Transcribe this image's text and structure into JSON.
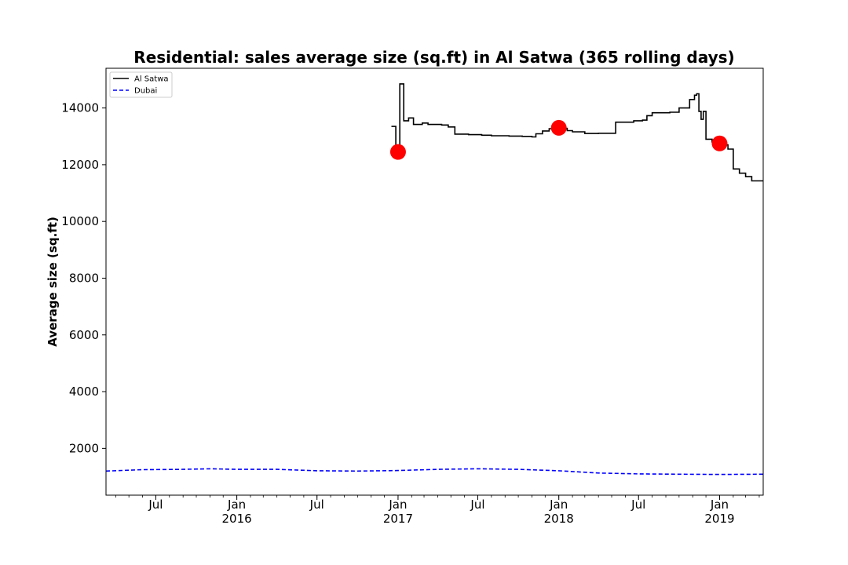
{
  "chart_data": {
    "type": "line",
    "title": "Residential: sales average size (sq.ft) in Al Satwa (365 rolling days)",
    "xlabel": "",
    "ylabel": "Average size (sq.ft)",
    "xlim": [
      "2015-03-10",
      "2019-04-10"
    ],
    "ylim": [
      350,
      15400
    ],
    "yticks": [
      2000,
      4000,
      6000,
      8000,
      10000,
      12000,
      14000
    ],
    "xticks": [
      {
        "date": "2015-07-01",
        "label": "Jul",
        "sub": ""
      },
      {
        "date": "2016-01-01",
        "label": "Jan",
        "sub": "2016"
      },
      {
        "date": "2016-07-01",
        "label": "Jul",
        "sub": ""
      },
      {
        "date": "2017-01-01",
        "label": "Jan",
        "sub": "2017"
      },
      {
        "date": "2017-07-01",
        "label": "Jul",
        "sub": ""
      },
      {
        "date": "2018-01-01",
        "label": "Jan",
        "sub": "2018"
      },
      {
        "date": "2018-07-01",
        "label": "Jul",
        "sub": ""
      },
      {
        "date": "2019-01-01",
        "label": "Jan",
        "sub": "2019"
      }
    ],
    "grid": false,
    "legend_position": "top-left",
    "series": [
      {
        "name": "Al Satwa",
        "color": "#000000",
        "style": "solid",
        "step": true,
        "points": [
          [
            "2016-12-17",
            13350
          ],
          [
            "2016-12-27",
            13350
          ],
          [
            "2016-12-27",
            12450
          ],
          [
            "2017-01-05",
            12450
          ],
          [
            "2017-01-05",
            14850
          ],
          [
            "2017-01-14",
            14850
          ],
          [
            "2017-01-14",
            13550
          ],
          [
            "2017-01-25",
            13650
          ],
          [
            "2017-02-05",
            13420
          ],
          [
            "2017-02-25",
            13470
          ],
          [
            "2017-03-10",
            13420
          ],
          [
            "2017-04-10",
            13400
          ],
          [
            "2017-04-25",
            13330
          ],
          [
            "2017-05-10",
            13080
          ],
          [
            "2017-06-10",
            13060
          ],
          [
            "2017-07-10",
            13040
          ],
          [
            "2017-08-01",
            13020
          ],
          [
            "2017-09-10",
            13010
          ],
          [
            "2017-10-10",
            13000
          ],
          [
            "2017-11-01",
            12980
          ],
          [
            "2017-11-10",
            13090
          ],
          [
            "2017-11-25",
            13190
          ],
          [
            "2017-12-10",
            13270
          ],
          [
            "2018-01-01",
            13280
          ],
          [
            "2018-01-20",
            13200
          ],
          [
            "2018-02-01",
            13160
          ],
          [
            "2018-03-01",
            13100
          ],
          [
            "2018-04-01",
            13110
          ],
          [
            "2018-05-10",
            13500
          ],
          [
            "2018-06-20",
            13550
          ],
          [
            "2018-07-10",
            13570
          ],
          [
            "2018-07-20",
            13730
          ],
          [
            "2018-08-01",
            13830
          ],
          [
            "2018-09-10",
            13850
          ],
          [
            "2018-10-01",
            14000
          ],
          [
            "2018-10-25",
            14300
          ],
          [
            "2018-11-05",
            14450
          ],
          [
            "2018-11-10",
            14500
          ],
          [
            "2018-11-15",
            13880
          ],
          [
            "2018-11-20",
            13600
          ],
          [
            "2018-11-25",
            13880
          ],
          [
            "2018-12-01",
            12900
          ],
          [
            "2018-12-15",
            12800
          ],
          [
            "2019-01-01",
            12700
          ],
          [
            "2019-01-20",
            12550
          ],
          [
            "2019-02-01",
            11850
          ],
          [
            "2019-02-15",
            11700
          ],
          [
            "2019-03-01",
            11580
          ],
          [
            "2019-03-15",
            11430
          ],
          [
            "2019-04-10",
            11430
          ]
        ]
      },
      {
        "name": "Dubai",
        "color": "#0000ff",
        "style": "dashed",
        "step": false,
        "points": [
          [
            "2015-03-10",
            1200
          ],
          [
            "2015-06-01",
            1250
          ],
          [
            "2015-09-01",
            1260
          ],
          [
            "2015-11-01",
            1280
          ],
          [
            "2016-01-01",
            1260
          ],
          [
            "2016-04-01",
            1260
          ],
          [
            "2016-07-01",
            1210
          ],
          [
            "2016-10-01",
            1200
          ],
          [
            "2017-01-01",
            1220
          ],
          [
            "2017-04-01",
            1260
          ],
          [
            "2017-07-01",
            1280
          ],
          [
            "2017-10-01",
            1260
          ],
          [
            "2018-01-01",
            1210
          ],
          [
            "2018-04-01",
            1130
          ],
          [
            "2018-07-01",
            1100
          ],
          [
            "2018-10-01",
            1090
          ],
          [
            "2019-01-01",
            1080
          ],
          [
            "2019-04-10",
            1090
          ]
        ]
      }
    ],
    "markers": [
      {
        "date": "2017-01-01",
        "value": 12450,
        "color": "#ff0000"
      },
      {
        "date": "2018-01-01",
        "value": 13300,
        "color": "#ff0000"
      },
      {
        "date": "2019-01-01",
        "value": 12750,
        "color": "#ff0000"
      }
    ]
  }
}
